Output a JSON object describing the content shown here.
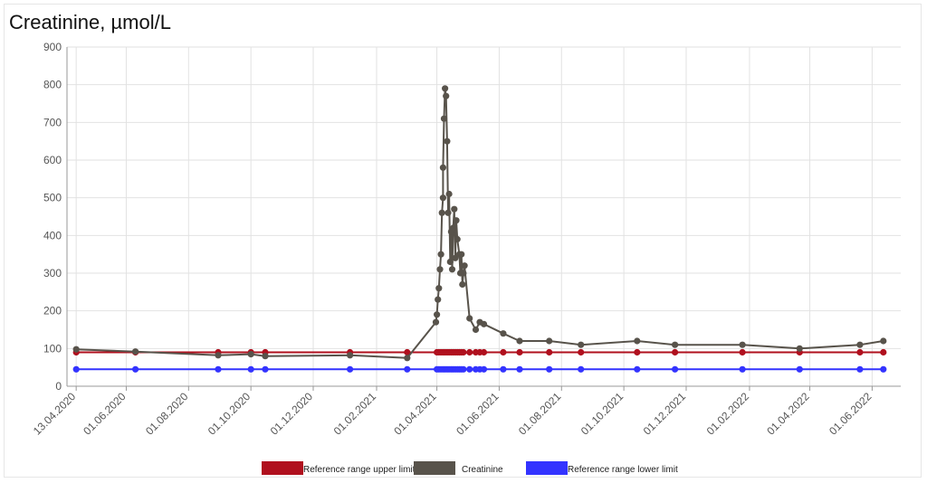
{
  "chart_data": {
    "type": "line",
    "title": "Creatinine, µmol/L",
    "ylim": [
      0,
      900
    ],
    "y_ticks": [
      0,
      100,
      200,
      300,
      400,
      500,
      600,
      700,
      800,
      900
    ],
    "x_ticks": [
      "13.04.2020",
      "01.06.2020",
      "01.08.2020",
      "01.10.2020",
      "01.12.2020",
      "01.02.2021",
      "01.04.2021",
      "01.06.2021",
      "01.08.2021",
      "01.10.2021",
      "01.12.2021",
      "01.02.2022",
      "01.04.2022",
      "01.06.2022"
    ],
    "grid": true,
    "legend_position": "bottom",
    "series": [
      {
        "name": "Reference range upper limit",
        "color": "#b0101e",
        "points": [
          [
            "2020-04-13",
            90
          ],
          [
            "2020-06-10",
            90
          ],
          [
            "2020-08-30",
            90
          ],
          [
            "2020-10-01",
            90
          ],
          [
            "2020-10-15",
            90
          ],
          [
            "2021-01-06",
            90
          ],
          [
            "2021-03-03",
            90
          ],
          [
            "2021-04-01",
            90
          ],
          [
            "2021-04-03",
            90
          ],
          [
            "2021-04-05",
            90
          ],
          [
            "2021-04-07",
            90
          ],
          [
            "2021-04-09",
            90
          ],
          [
            "2021-04-11",
            90
          ],
          [
            "2021-04-13",
            90
          ],
          [
            "2021-04-15",
            90
          ],
          [
            "2021-04-17",
            90
          ],
          [
            "2021-04-19",
            90
          ],
          [
            "2021-04-21",
            90
          ],
          [
            "2021-04-23",
            90
          ],
          [
            "2021-04-25",
            90
          ],
          [
            "2021-04-27",
            90
          ],
          [
            "2021-05-03",
            90
          ],
          [
            "2021-05-09",
            90
          ],
          [
            "2021-05-13",
            90
          ],
          [
            "2021-05-17",
            90
          ],
          [
            "2021-06-05",
            90
          ],
          [
            "2021-06-21",
            90
          ],
          [
            "2021-07-20",
            90
          ],
          [
            "2021-08-20",
            90
          ],
          [
            "2021-10-14",
            90
          ],
          [
            "2021-11-20",
            90
          ],
          [
            "2022-01-25",
            90
          ],
          [
            "2022-03-22",
            90
          ],
          [
            "2022-05-20",
            90
          ],
          [
            "2022-06-12",
            90
          ]
        ]
      },
      {
        "name": "Creatinine",
        "color": "#58534b",
        "points": [
          [
            "2020-04-13",
            98
          ],
          [
            "2020-06-10",
            92
          ],
          [
            "2020-08-30",
            82
          ],
          [
            "2020-10-01",
            85
          ],
          [
            "2020-10-15",
            80
          ],
          [
            "2021-01-06",
            82
          ],
          [
            "2021-03-03",
            75
          ],
          [
            "2021-03-31",
            170
          ],
          [
            "2021-04-01",
            190
          ],
          [
            "2021-04-02",
            230
          ],
          [
            "2021-04-03",
            260
          ],
          [
            "2021-04-04",
            310
          ],
          [
            "2021-04-05",
            350
          ],
          [
            "2021-04-06",
            460
          ],
          [
            "2021-04-07",
            500
          ],
          [
            "2021-04-07",
            580
          ],
          [
            "2021-04-08",
            710
          ],
          [
            "2021-04-09",
            790
          ],
          [
            "2021-04-10",
            770
          ],
          [
            "2021-04-11",
            650
          ],
          [
            "2021-04-12",
            460
          ],
          [
            "2021-04-13",
            510
          ],
          [
            "2021-04-14",
            330
          ],
          [
            "2021-04-15",
            410
          ],
          [
            "2021-04-16",
            310
          ],
          [
            "2021-04-17",
            420
          ],
          [
            "2021-04-18",
            470
          ],
          [
            "2021-04-19",
            340
          ],
          [
            "2021-04-20",
            440
          ],
          [
            "2021-04-21",
            390
          ],
          [
            "2021-04-23",
            350
          ],
          [
            "2021-04-24",
            300
          ],
          [
            "2021-04-25",
            350
          ],
          [
            "2021-04-26",
            270
          ],
          [
            "2021-04-27",
            300
          ],
          [
            "2021-04-28",
            320
          ],
          [
            "2021-05-03",
            180
          ],
          [
            "2021-05-09",
            150
          ],
          [
            "2021-05-13",
            170
          ],
          [
            "2021-05-17",
            165
          ],
          [
            "2021-06-05",
            140
          ],
          [
            "2021-06-21",
            120
          ],
          [
            "2021-07-20",
            120
          ],
          [
            "2021-08-20",
            110
          ],
          [
            "2021-10-14",
            120
          ],
          [
            "2021-11-20",
            110
          ],
          [
            "2022-01-25",
            110
          ],
          [
            "2022-03-22",
            100
          ],
          [
            "2022-05-20",
            110
          ],
          [
            "2022-06-12",
            120
          ]
        ]
      },
      {
        "name": "Reference range lower limit",
        "color": "#3333ff",
        "points": [
          [
            "2020-04-13",
            45
          ],
          [
            "2020-06-10",
            45
          ],
          [
            "2020-08-30",
            45
          ],
          [
            "2020-10-01",
            45
          ],
          [
            "2020-10-15",
            45
          ],
          [
            "2021-01-06",
            45
          ],
          [
            "2021-03-03",
            45
          ],
          [
            "2021-04-01",
            45
          ],
          [
            "2021-04-03",
            45
          ],
          [
            "2021-04-05",
            45
          ],
          [
            "2021-04-07",
            45
          ],
          [
            "2021-04-09",
            45
          ],
          [
            "2021-04-11",
            45
          ],
          [
            "2021-04-13",
            45
          ],
          [
            "2021-04-15",
            45
          ],
          [
            "2021-04-17",
            45
          ],
          [
            "2021-04-19",
            45
          ],
          [
            "2021-04-21",
            45
          ],
          [
            "2021-04-23",
            45
          ],
          [
            "2021-04-25",
            45
          ],
          [
            "2021-04-27",
            45
          ],
          [
            "2021-05-03",
            45
          ],
          [
            "2021-05-09",
            45
          ],
          [
            "2021-05-13",
            45
          ],
          [
            "2021-05-17",
            45
          ],
          [
            "2021-06-05",
            45
          ],
          [
            "2021-06-21",
            45
          ],
          [
            "2021-07-20",
            45
          ],
          [
            "2021-08-20",
            45
          ],
          [
            "2021-10-14",
            45
          ],
          [
            "2021-11-20",
            45
          ],
          [
            "2022-01-25",
            45
          ],
          [
            "2022-03-22",
            45
          ],
          [
            "2022-05-20",
            45
          ],
          [
            "2022-06-12",
            45
          ]
        ]
      }
    ]
  }
}
